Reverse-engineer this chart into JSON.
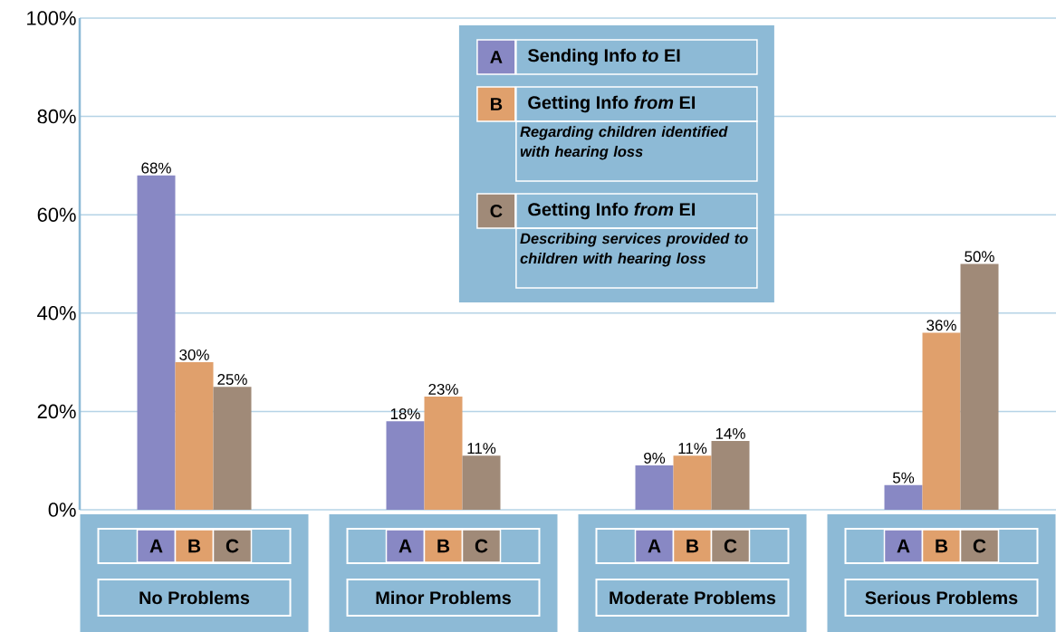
{
  "chart_data": {
    "type": "bar",
    "categories": [
      "No Problems",
      "Minor Problems",
      "Moderate Problems",
      "Serious Problems"
    ],
    "series": [
      {
        "name": "Sending Info *to* EI",
        "color": "#8888c4",
        "values": [
          68,
          18,
          9,
          5
        ],
        "value_labels": [
          "68%",
          "18%",
          "9%",
          "5%"
        ]
      },
      {
        "name": "Getting Info *from* EI",
        "color": "#e0a06c",
        "values": [
          30,
          23,
          11,
          36
        ],
        "value_labels": [
          "30%",
          "23%",
          "11%",
          "36%"
        ]
      },
      {
        "name": "Getting Info *from* EI",
        "color": "#a08a78",
        "values": [
          25,
          11,
          14,
          50
        ],
        "value_labels": [
          "25%",
          "11%",
          "14%",
          "50%"
        ]
      }
    ],
    "annotations": [
      "A",
      "B",
      "C",
      "Regarding children identified with hearing loss",
      "Describing services provided to children with hearing loss"
    ],
    "ylim": [
      0,
      100
    ],
    "yticks": [
      {
        "value": 0,
        "label": "0%"
      },
      {
        "value": 20,
        "label": "20%"
      },
      {
        "value": 40,
        "label": "40%"
      },
      {
        "value": 60,
        "label": "60%"
      },
      {
        "value": 80,
        "label": "80%"
      },
      {
        "value": 100,
        "label": "100%"
      }
    ],
    "grid": "y",
    "legend": "top"
  }
}
